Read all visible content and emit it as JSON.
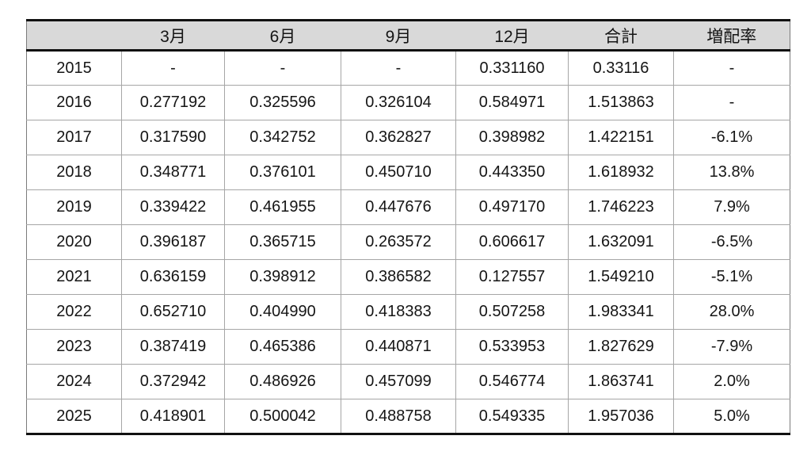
{
  "colors": {
    "header_bg": "#d9d9d9",
    "grid_line": "#a6a6a6",
    "heavy_rule": "#111111",
    "text": "#151515",
    "background": "#ffffff"
  },
  "chart_data": {
    "type": "table",
    "columns": [
      "",
      "3月",
      "6月",
      "9月",
      "12月",
      "合計",
      "増配率"
    ],
    "row_header_field": "year",
    "rows": [
      {
        "year": "2015",
        "values": [
          "-",
          "-",
          "-",
          "0.331160",
          "0.33116",
          "-"
        ]
      },
      {
        "year": "2016",
        "values": [
          "0.277192",
          "0.325596",
          "0.326104",
          "0.584971",
          "1.513863",
          "-"
        ]
      },
      {
        "year": "2017",
        "values": [
          "0.317590",
          "0.342752",
          "0.362827",
          "0.398982",
          "1.422151",
          "-6.1%"
        ]
      },
      {
        "year": "2018",
        "values": [
          "0.348771",
          "0.376101",
          "0.450710",
          "0.443350",
          "1.618932",
          "13.8%"
        ]
      },
      {
        "year": "2019",
        "values": [
          "0.339422",
          "0.461955",
          "0.447676",
          "0.497170",
          "1.746223",
          "7.9%"
        ]
      },
      {
        "year": "2020",
        "values": [
          "0.396187",
          "0.365715",
          "0.263572",
          "0.606617",
          "1.632091",
          "-6.5%"
        ]
      },
      {
        "year": "2021",
        "values": [
          "0.636159",
          "0.398912",
          "0.386582",
          "0.127557",
          "1.549210",
          "-5.1%"
        ]
      },
      {
        "year": "2022",
        "values": [
          "0.652710",
          "0.404990",
          "0.418383",
          "0.507258",
          "1.983341",
          "28.0%"
        ]
      },
      {
        "year": "2023",
        "values": [
          "0.387419",
          "0.465386",
          "0.440871",
          "0.533953",
          "1.827629",
          "-7.9%"
        ]
      },
      {
        "year": "2024",
        "values": [
          "0.372942",
          "0.486926",
          "0.457099",
          "0.546774",
          "1.863741",
          "2.0%"
        ]
      },
      {
        "year": "2025",
        "values": [
          "0.418901",
          "0.500042",
          "0.488758",
          "0.549335",
          "1.957036",
          "5.0%"
        ]
      }
    ]
  }
}
